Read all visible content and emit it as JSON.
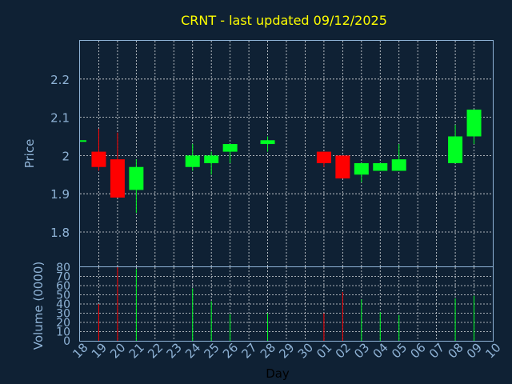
{
  "chart_data": {
    "type": "candlestick",
    "title": "CRNT - last updated 09/12/2025",
    "colors": {
      "background": "#0f2134",
      "up": "#00ff22",
      "down": "#ff0000",
      "axis": "#8fb3d6",
      "title": "#ffff00",
      "grid": "#ffffff"
    },
    "price_panel": {
      "ylabel": "Price",
      "ylim": [
        1.71,
        2.3
      ],
      "yticks": [
        "1.8",
        "1.9",
        "2",
        "2.1",
        "2.2"
      ],
      "ytick_values": [
        1.8,
        1.9,
        2.0,
        2.1,
        2.2
      ],
      "grid": true
    },
    "volume_panel": {
      "ylabel": "Volume (0000)",
      "ylim": [
        0,
        80
      ],
      "yticks": [
        "0",
        "10",
        "20",
        "30",
        "40",
        "50",
        "60",
        "70",
        "80"
      ],
      "ytick_values": [
        0,
        10,
        20,
        30,
        40,
        50,
        60,
        70,
        80
      ],
      "grid": true
    },
    "xlabel": "Day",
    "xticks": [
      "18",
      "19",
      "20",
      "21",
      "22",
      "23",
      "24",
      "25",
      "26",
      "27",
      "28",
      "29",
      "30",
      "01",
      "02",
      "03",
      "04",
      "05",
      "06",
      "07",
      "08",
      "09",
      "10"
    ],
    "candles": [
      {
        "x": "18",
        "open": 2.04,
        "high": 2.04,
        "low": 2.04,
        "close": 2.04,
        "volume": 0
      },
      {
        "x": "19",
        "open": 2.01,
        "high": 2.07,
        "low": 1.96,
        "close": 1.97,
        "volume": 40
      },
      {
        "x": "20",
        "open": 1.99,
        "high": 2.06,
        "low": 1.89,
        "close": 1.89,
        "volume": 80
      },
      {
        "x": "21",
        "open": 1.91,
        "high": 1.99,
        "low": 1.85,
        "close": 1.97,
        "volume": 78
      },
      {
        "x": "24",
        "open": 1.97,
        "high": 2.03,
        "low": 1.96,
        "close": 2.0,
        "volume": 57
      },
      {
        "x": "25",
        "open": 1.98,
        "high": 2.01,
        "low": 1.95,
        "close": 2.0,
        "volume": 43
      },
      {
        "x": "26",
        "open": 2.01,
        "high": 2.03,
        "low": 1.98,
        "close": 2.03,
        "volume": 29
      },
      {
        "x": "28",
        "open": 2.03,
        "high": 2.05,
        "low": 2.01,
        "close": 2.04,
        "volume": 30
      },
      {
        "x": "01",
        "open": 2.01,
        "high": 2.01,
        "low": 1.97,
        "close": 1.98,
        "volume": 30
      },
      {
        "x": "02",
        "open": 2.0,
        "high": 2.0,
        "low": 1.94,
        "close": 1.94,
        "volume": 53
      },
      {
        "x": "03",
        "open": 1.95,
        "high": 1.98,
        "low": 1.93,
        "close": 1.98,
        "volume": 45
      },
      {
        "x": "04",
        "open": 1.96,
        "high": 1.98,
        "low": 1.96,
        "close": 1.98,
        "volume": 31
      },
      {
        "x": "05",
        "open": 1.96,
        "high": 2.03,
        "low": 1.96,
        "close": 1.99,
        "volume": 28
      },
      {
        "x": "08",
        "open": 1.98,
        "high": 2.08,
        "low": 1.98,
        "close": 2.05,
        "volume": 46
      },
      {
        "x": "09",
        "open": 2.05,
        "high": 2.12,
        "low": 2.03,
        "close": 2.12,
        "volume": 49
      }
    ]
  }
}
